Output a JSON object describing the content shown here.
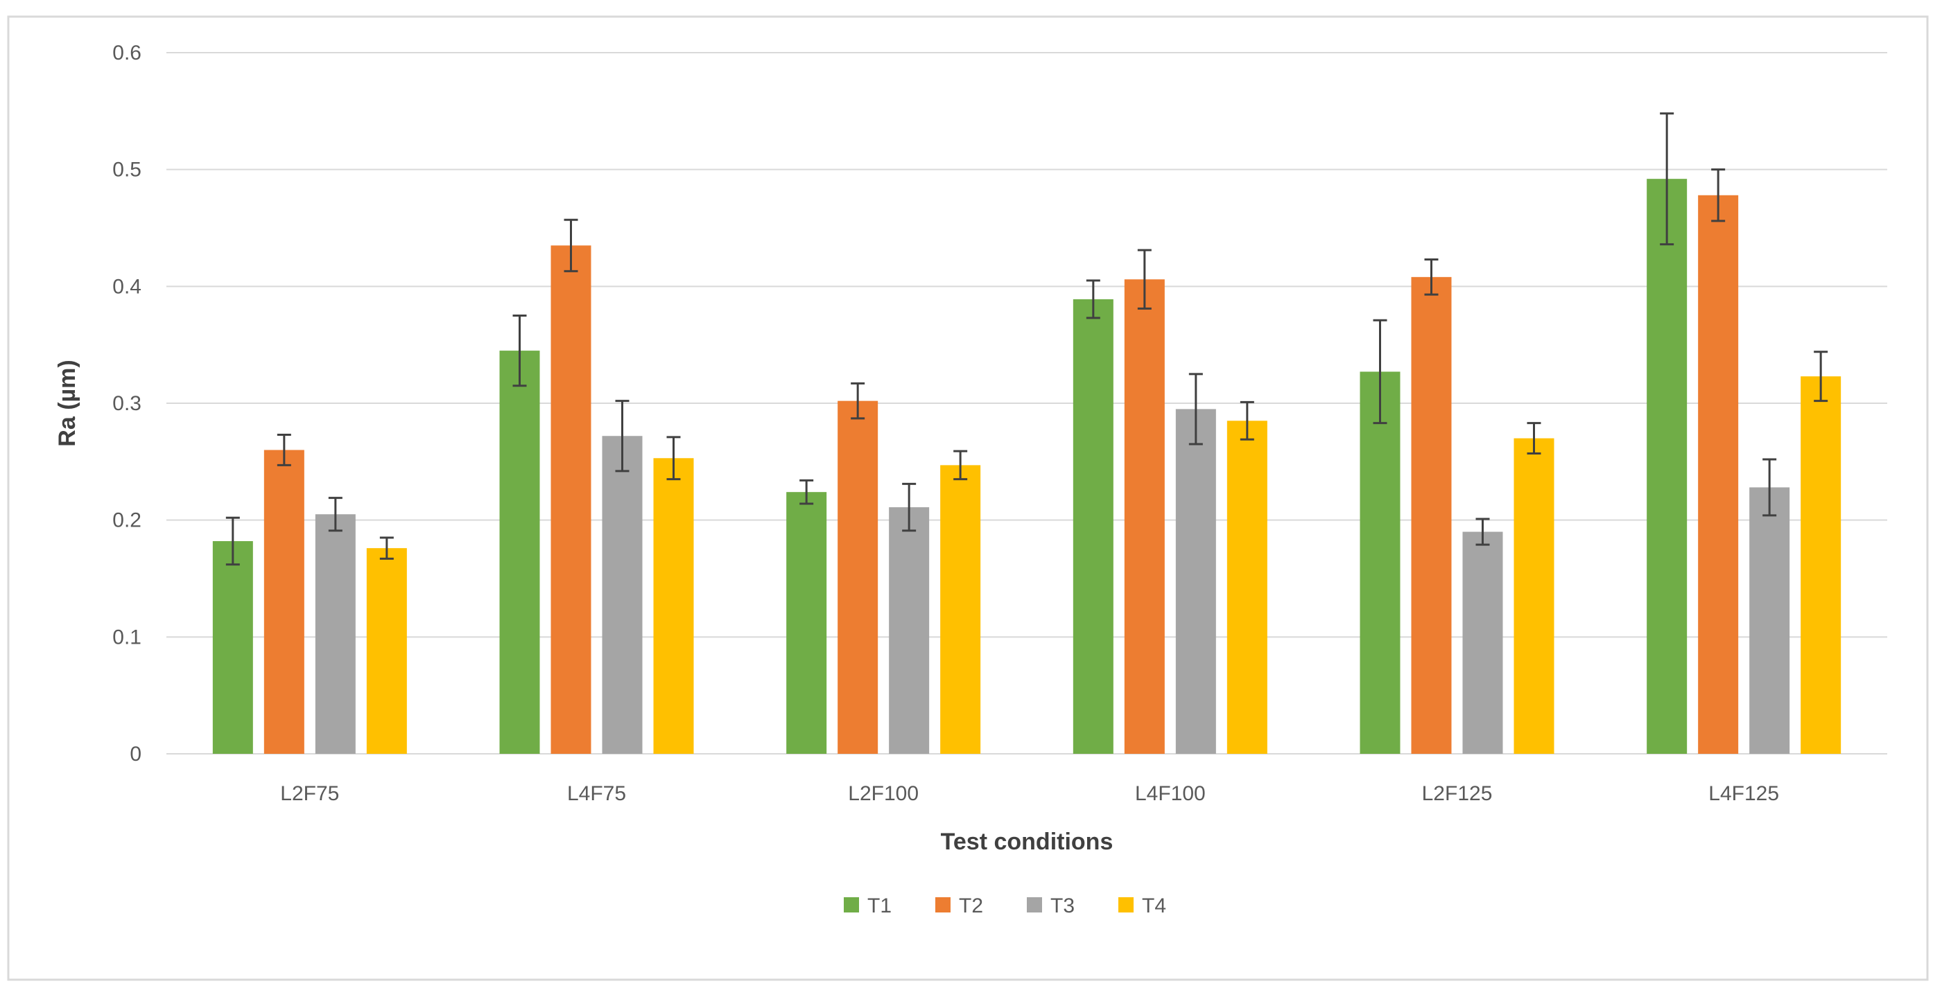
{
  "chart_data": {
    "type": "bar",
    "title": "",
    "xlabel": "Test conditions",
    "ylabel": "Ra (µm)",
    "ylim": [
      0,
      0.6
    ],
    "yticks": [
      0,
      0.1,
      0.2,
      0.3,
      0.4,
      0.5,
      0.6
    ],
    "ytick_labels": [
      "0",
      "0.1",
      "0.2",
      "0.3",
      "0.4",
      "0.5",
      "0.6"
    ],
    "grid": true,
    "legend_position": "bottom-center",
    "categories": [
      "L2F75",
      "L4F75",
      "L2F100",
      "L4F100",
      "L2F125",
      "L4F125"
    ],
    "series": [
      {
        "name": "T1",
        "color": "#70AD47",
        "values": [
          0.182,
          0.345,
          0.224,
          0.389,
          0.327,
          0.492
        ],
        "errors": [
          0.02,
          0.03,
          0.01,
          0.016,
          0.044,
          0.056
        ]
      },
      {
        "name": "T2",
        "color": "#ED7D31",
        "values": [
          0.26,
          0.435,
          0.302,
          0.406,
          0.408,
          0.478
        ],
        "errors": [
          0.013,
          0.022,
          0.015,
          0.025,
          0.015,
          0.022
        ]
      },
      {
        "name": "T3",
        "color": "#A5A5A5",
        "values": [
          0.205,
          0.272,
          0.211,
          0.295,
          0.19,
          0.228
        ],
        "errors": [
          0.014,
          0.03,
          0.02,
          0.03,
          0.011,
          0.024
        ]
      },
      {
        "name": "T4",
        "color": "#FFC000",
        "values": [
          0.176,
          0.253,
          0.247,
          0.285,
          0.27,
          0.323
        ],
        "errors": [
          0.009,
          0.018,
          0.012,
          0.016,
          0.013,
          0.021
        ]
      }
    ]
  }
}
